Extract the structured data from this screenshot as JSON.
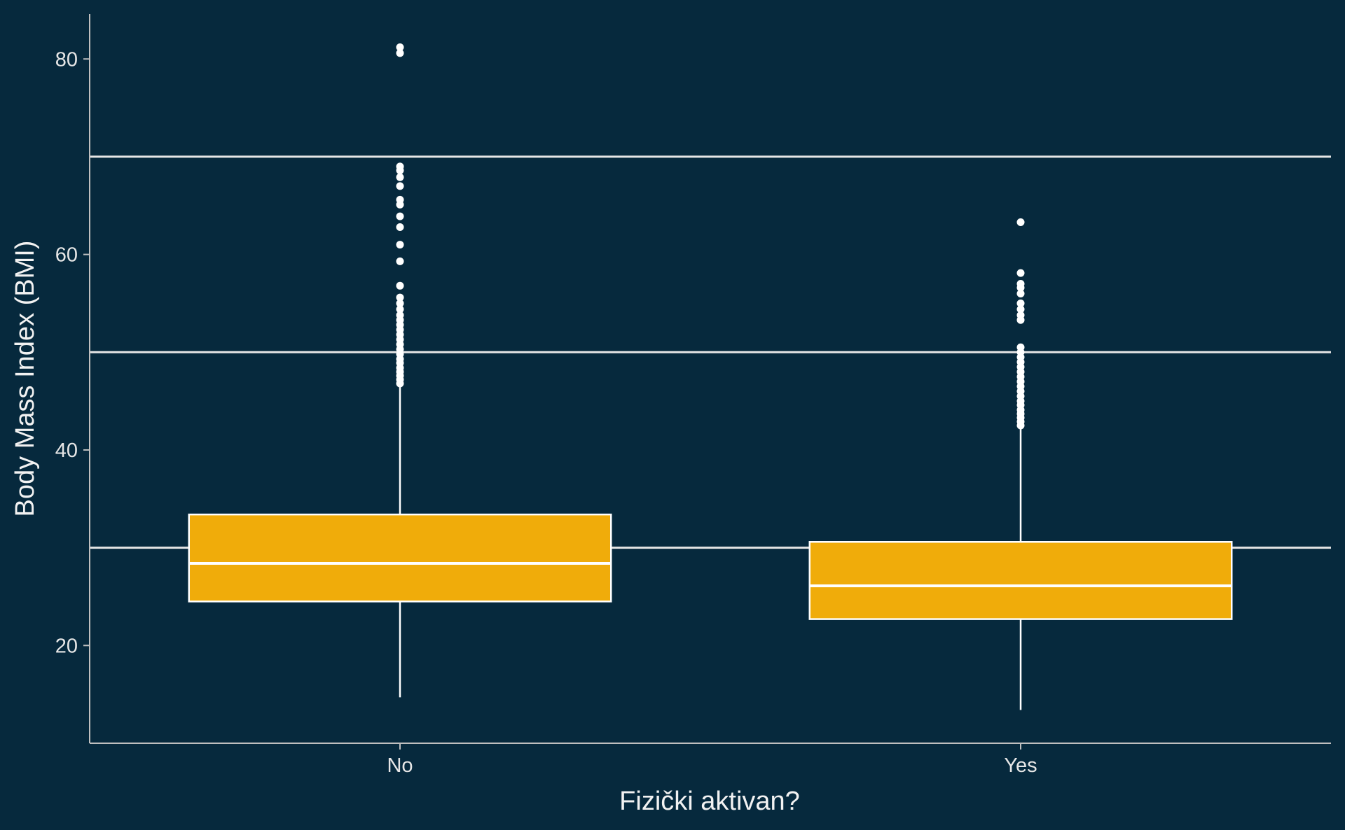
{
  "chart_data": {
    "type": "boxplot",
    "title": "",
    "xlabel": "Fizički aktivan?",
    "ylabel": "Body Mass Index (BMI)",
    "categories": [
      "No",
      "Yes"
    ],
    "ylim": [
      10.0,
      84.6
    ],
    "yticks": [
      20,
      40,
      60,
      80
    ],
    "ytick_labels": [
      "20",
      "40",
      "60",
      "80"
    ],
    "reference_lines": [
      30,
      50,
      70
    ],
    "grid": false,
    "legend": "none",
    "boxes": [
      {
        "category": "No",
        "whisker_low": 14.7,
        "q1": 24.5,
        "median": 28.4,
        "q3": 33.4,
        "whisker_high": 46.7,
        "outliers": [
          46.8,
          47.2,
          47.6,
          48.0,
          48.4,
          48.9,
          49.3,
          49.8,
          50.3,
          50.8,
          51.3,
          51.8,
          52.3,
          52.8,
          53.3,
          53.8,
          54.4,
          55.0,
          55.6,
          56.8,
          59.3,
          61.0,
          62.8,
          63.9,
          65.1,
          65.6,
          67.0,
          67.9,
          68.6,
          69.0,
          80.6,
          81.2
        ]
      },
      {
        "category": "Yes",
        "whisker_low": 13.4,
        "q1": 22.7,
        "median": 26.1,
        "q3": 30.6,
        "whisker_high": 42.3,
        "outliers": [
          42.5,
          42.9,
          43.3,
          43.7,
          44.1,
          44.6,
          45.0,
          45.5,
          46.0,
          46.5,
          47.0,
          47.5,
          48.0,
          48.5,
          49.0,
          49.5,
          50.0,
          50.5,
          53.3,
          53.8,
          54.4,
          55.0,
          56.0,
          56.6,
          57.0,
          58.1,
          63.3
        ]
      }
    ],
    "colors": {
      "background": "#06293d",
      "box_fill": "#f0ac0a",
      "box_stroke": "#ffffff",
      "outlier": "#ffffff",
      "reference_line": "#e6e6e6",
      "axis": "#bfbfbf",
      "text": "#e6e6e6"
    }
  }
}
